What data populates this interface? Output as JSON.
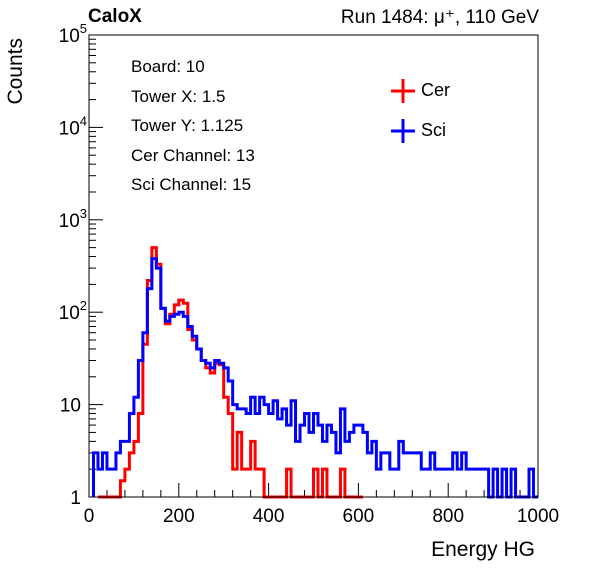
{
  "header": {
    "experiment": "CaloX",
    "run_info": "Run 1484:   μ⁺, 110 GeV"
  },
  "info_box": {
    "lines": [
      "Board: 10",
      "Tower X: 1.5",
      "Tower Y: 1.125",
      "Cer Channel: 13",
      "Sci Channel: 15"
    ]
  },
  "chart_data": {
    "type": "line",
    "xlabel": "Energy HG",
    "ylabel": "Counts",
    "xlim": [
      0,
      1000
    ],
    "ylim": [
      1,
      100000
    ],
    "yscale": "log",
    "x_ticks": [
      0,
      200,
      400,
      600,
      800,
      1000
    ],
    "x_tick_labels": [
      "0",
      "200",
      "400",
      "600",
      "800",
      "1000"
    ],
    "y_ticks": [
      1,
      10,
      100,
      1000,
      10000,
      100000
    ],
    "y_tick_labels": [
      {
        "base": "1",
        "exp": ""
      },
      {
        "base": "10",
        "exp": ""
      },
      {
        "base": "10",
        "exp": "2"
      },
      {
        "base": "10",
        "exp": "3"
      },
      {
        "base": "10",
        "exp": "4"
      },
      {
        "base": "10",
        "exp": "5"
      }
    ],
    "legend_position": "top-right",
    "grid": false,
    "series": [
      {
        "name": "Cer",
        "color": "#ff0000",
        "points": [
          [
            20,
            1
          ],
          [
            30,
            1
          ],
          [
            40,
            1
          ],
          [
            50,
            1
          ],
          [
            60,
            1
          ],
          [
            70,
            1.5
          ],
          [
            80,
            2
          ],
          [
            90,
            3
          ],
          [
            100,
            4
          ],
          [
            110,
            8
          ],
          [
            120,
            45
          ],
          [
            130,
            220
          ],
          [
            140,
            500
          ],
          [
            150,
            330
          ],
          [
            160,
            110
          ],
          [
            170,
            75
          ],
          [
            180,
            95
          ],
          [
            190,
            120
          ],
          [
            200,
            135
          ],
          [
            210,
            125
          ],
          [
            220,
            65
          ],
          [
            230,
            50
          ],
          [
            240,
            40
          ],
          [
            250,
            30
          ],
          [
            260,
            25
          ],
          [
            270,
            22
          ],
          [
            280,
            28
          ],
          [
            290,
            27
          ],
          [
            300,
            12
          ],
          [
            310,
            8
          ],
          [
            320,
            2
          ],
          [
            330,
            5
          ],
          [
            340,
            2
          ],
          [
            350,
            2
          ],
          [
            360,
            4
          ],
          [
            370,
            2
          ],
          [
            380,
            2
          ],
          [
            390,
            1
          ],
          [
            400,
            1
          ],
          [
            410,
            1
          ],
          [
            420,
            1
          ],
          [
            430,
            1
          ],
          [
            440,
            2
          ],
          [
            450,
            1
          ],
          [
            460,
            1
          ],
          [
            470,
            1
          ],
          [
            480,
            1
          ],
          [
            490,
            1
          ],
          [
            500,
            2
          ],
          [
            510,
            1
          ],
          [
            520,
            2
          ],
          [
            530,
            1
          ],
          [
            540,
            1
          ],
          [
            550,
            1
          ],
          [
            560,
            2
          ],
          [
            570,
            1
          ],
          [
            580,
            1
          ],
          [
            590,
            1
          ],
          [
            600,
            1
          ]
        ]
      },
      {
        "name": "Sci",
        "color": "#0000ff",
        "points": [
          [
            10,
            3
          ],
          [
            20,
            2
          ],
          [
            30,
            3
          ],
          [
            40,
            2
          ],
          [
            50,
            2
          ],
          [
            60,
            3
          ],
          [
            70,
            4
          ],
          [
            80,
            4
          ],
          [
            90,
            8
          ],
          [
            100,
            12
          ],
          [
            110,
            30
          ],
          [
            120,
            60
          ],
          [
            130,
            180
          ],
          [
            140,
            380
          ],
          [
            150,
            300
          ],
          [
            160,
            110
          ],
          [
            170,
            80
          ],
          [
            180,
            90
          ],
          [
            190,
            95
          ],
          [
            200,
            100
          ],
          [
            210,
            90
          ],
          [
            220,
            70
          ],
          [
            230,
            55
          ],
          [
            240,
            40
          ],
          [
            250,
            30
          ],
          [
            260,
            28
          ],
          [
            270,
            25
          ],
          [
            280,
            30
          ],
          [
            290,
            28
          ],
          [
            300,
            25
          ],
          [
            310,
            18
          ],
          [
            320,
            10
          ],
          [
            330,
            9
          ],
          [
            340,
            9
          ],
          [
            350,
            8
          ],
          [
            360,
            12
          ],
          [
            370,
            8
          ],
          [
            380,
            12
          ],
          [
            390,
            10
          ],
          [
            400,
            8
          ],
          [
            410,
            11
          ],
          [
            420,
            7
          ],
          [
            430,
            9
          ],
          [
            440,
            6
          ],
          [
            450,
            11
          ],
          [
            460,
            4
          ],
          [
            470,
            6
          ],
          [
            480,
            8
          ],
          [
            490,
            5
          ],
          [
            500,
            8
          ],
          [
            510,
            6
          ],
          [
            520,
            4
          ],
          [
            530,
            6
          ],
          [
            540,
            5
          ],
          [
            550,
            3
          ],
          [
            560,
            9
          ],
          [
            570,
            4
          ],
          [
            580,
            5
          ],
          [
            590,
            6
          ],
          [
            600,
            6
          ],
          [
            610,
            5
          ],
          [
            620,
            3
          ],
          [
            630,
            4
          ],
          [
            640,
            2
          ],
          [
            650,
            3
          ],
          [
            660,
            3
          ],
          [
            670,
            2
          ],
          [
            680,
            2
          ],
          [
            690,
            4
          ],
          [
            700,
            3
          ],
          [
            710,
            3
          ],
          [
            720,
            3
          ],
          [
            730,
            3
          ],
          [
            740,
            2
          ],
          [
            750,
            2
          ],
          [
            760,
            3
          ],
          [
            770,
            2
          ],
          [
            780,
            2
          ],
          [
            790,
            2
          ],
          [
            800,
            2
          ],
          [
            810,
            3
          ],
          [
            820,
            2
          ],
          [
            830,
            3
          ],
          [
            840,
            2
          ],
          [
            850,
            2
          ],
          [
            860,
            2
          ],
          [
            870,
            2
          ],
          [
            880,
            2
          ],
          [
            890,
            1
          ],
          [
            900,
            2
          ],
          [
            910,
            1
          ],
          [
            920,
            2
          ],
          [
            930,
            1
          ],
          [
            940,
            2
          ],
          [
            950,
            1
          ],
          [
            960,
            1
          ],
          [
            970,
            1
          ],
          [
            980,
            2
          ],
          [
            990,
            1
          ]
        ]
      }
    ]
  }
}
